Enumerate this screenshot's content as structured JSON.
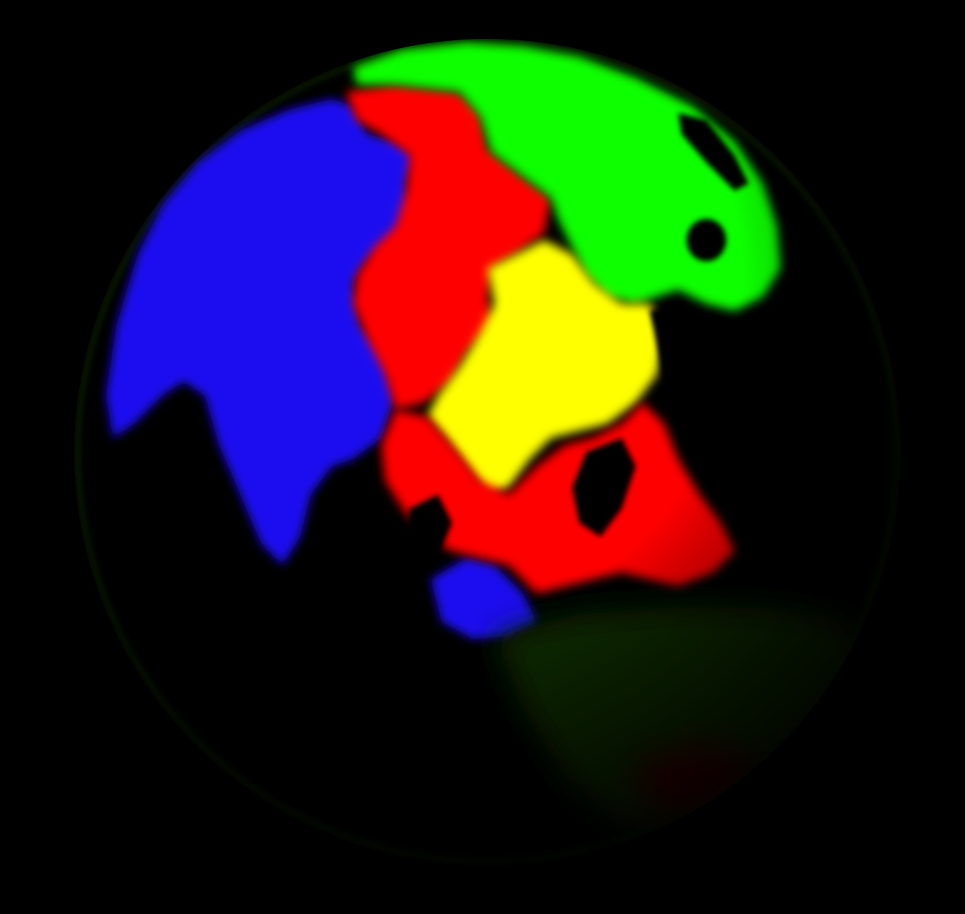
{
  "scene": {
    "subject": "globe-render",
    "background_color": "#000000",
    "region_colors": {
      "blue": "#1a10f0",
      "red": "#ff0000",
      "green": "#10ff00",
      "yellow": "#ffff00",
      "dark_green": "#0c2a06",
      "dark_red": "#3a0404"
    }
  }
}
